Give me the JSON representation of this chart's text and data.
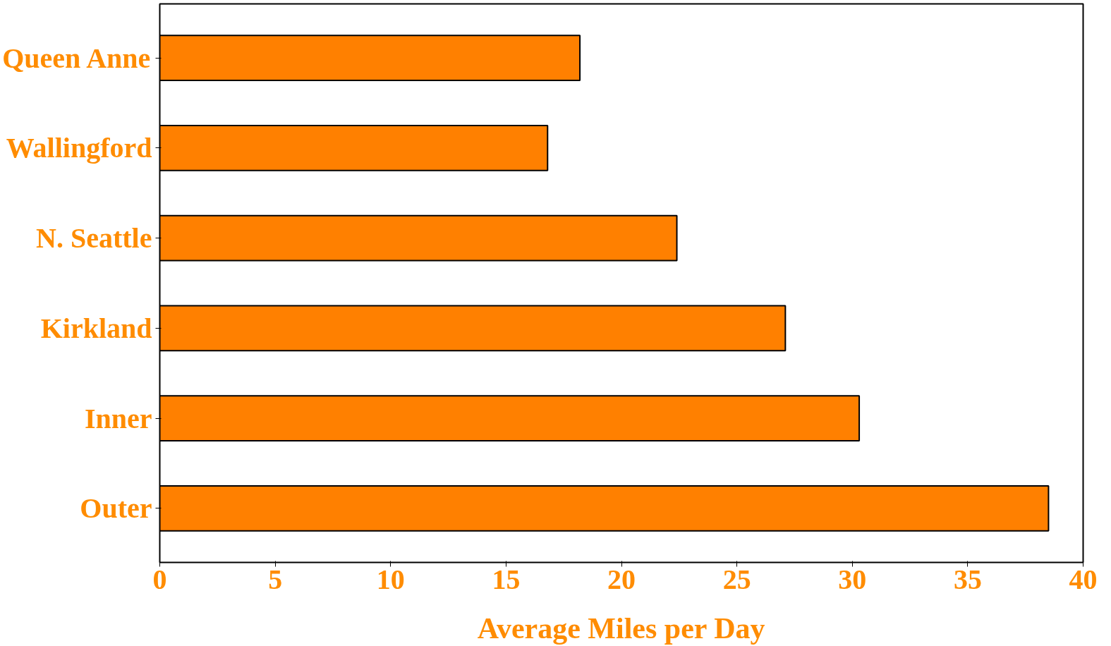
{
  "chart_data": {
    "type": "bar",
    "orientation": "horizontal",
    "xlabel": "Average Miles per Day",
    "categories": [
      "Queen Anne",
      "Wallingford",
      "N. Seattle",
      "Kirkland",
      "Inner",
      "Outer"
    ],
    "values": [
      18.2,
      16.8,
      22.4,
      27.1,
      30.3,
      38.5
    ],
    "color": "#ff8000",
    "xlim": [
      0,
      40
    ],
    "xticks": [
      0,
      5,
      10,
      15,
      20,
      25,
      30,
      35,
      40
    ]
  }
}
